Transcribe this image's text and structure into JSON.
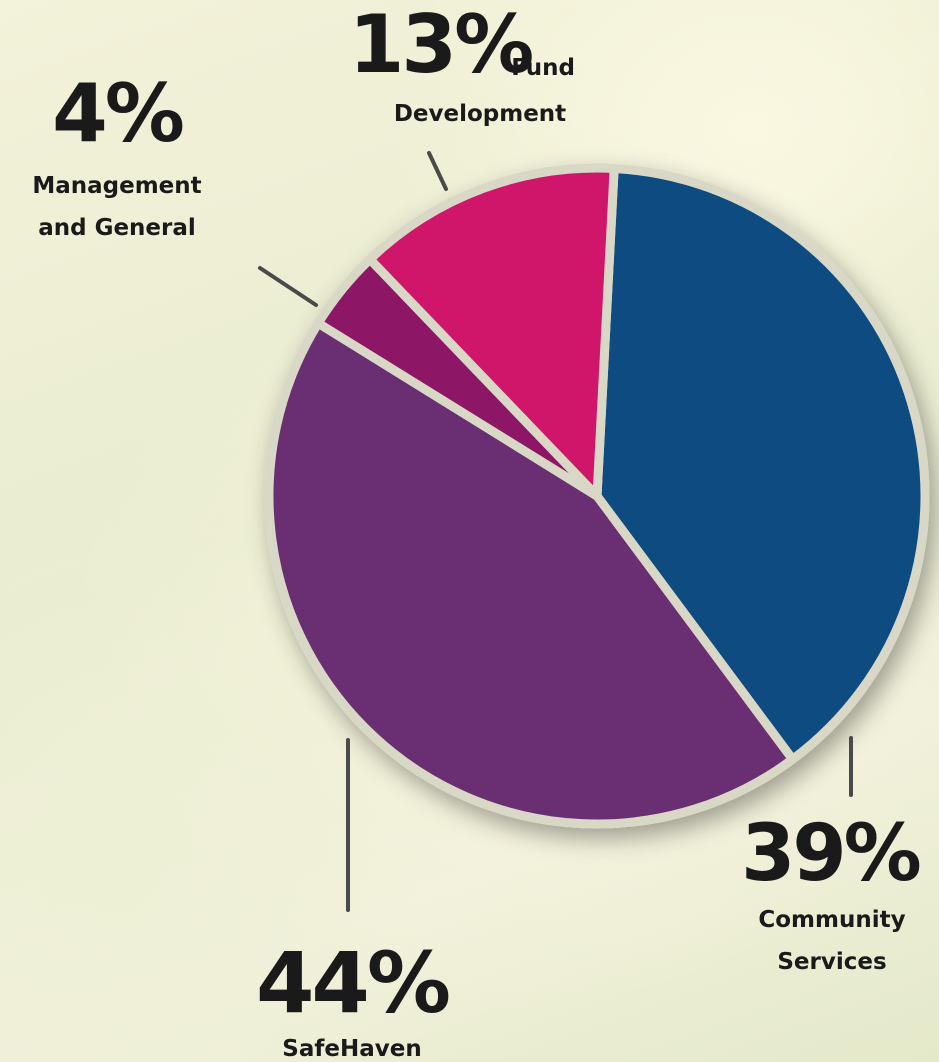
{
  "chart_data": {
    "type": "pie",
    "title": "",
    "slices": [
      {
        "label_lines": [
          "Community",
          "Services"
        ],
        "value": 39,
        "value_label": "39%",
        "color": "#0f4c80"
      },
      {
        "label_lines": [
          "SafeHaven"
        ],
        "value": 44,
        "value_label": "44%",
        "color": "#6a2f72"
      },
      {
        "label_lines": [
          "Management",
          "and General"
        ],
        "value": 4,
        "value_label": "4%",
        "color": "#8e1466"
      },
      {
        "label_lines": [
          "Fund",
          "Development"
        ],
        "value": 13,
        "value_label": "13%",
        "color": "#d0186a"
      }
    ],
    "start_angle_deg": 3,
    "direction": "clockwise",
    "legend": "none"
  },
  "colors": {
    "separator": "#d9d8c6",
    "leader_line": "#4a4a4a",
    "text": "#1a1a1a"
  }
}
